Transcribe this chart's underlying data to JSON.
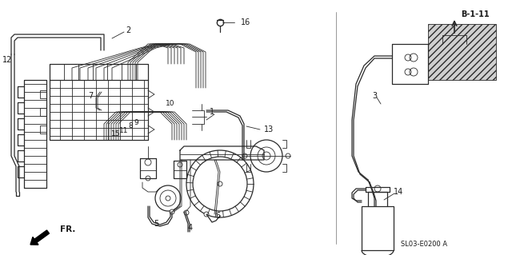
{
  "background_color": "#ffffff",
  "line_color": "#2a2a2a",
  "label_color": "#1a1a1a",
  "font_size": 7,
  "diagram_code": "SL03-E0200 A"
}
